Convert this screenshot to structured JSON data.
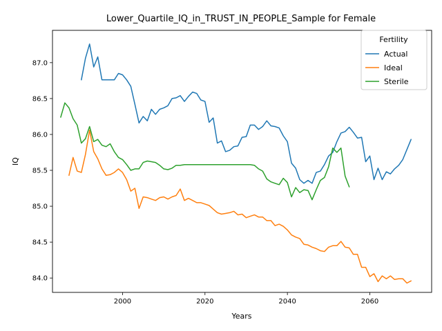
{
  "chart_data": {
    "type": "line",
    "title": "Lower_Quartile_IQ_in_TRUST_IN_PEOPLE_Sample for Female",
    "xlabel": "Years",
    "ylabel": "IQ",
    "xlim": [
      1983,
      2075
    ],
    "ylim": [
      83.8,
      87.45
    ],
    "xticks": [
      2000,
      2020,
      2040,
      2060
    ],
    "yticks": [
      84.0,
      84.5,
      85.0,
      85.5,
      86.0,
      86.5,
      87.0
    ],
    "ytick_labels": [
      "84.0",
      "84.5",
      "85.0",
      "85.5",
      "86.0",
      "86.5",
      "87.0"
    ],
    "grid": false,
    "legend": {
      "title": "Fertility",
      "position": "top-right"
    },
    "series": [
      {
        "name": "Actual",
        "color": "#1f77b4",
        "x": [
          1990,
          1991,
          1992,
          1993,
          1994,
          1995,
          1996,
          1997,
          1998,
          1999,
          2000,
          2001,
          2002,
          2003,
          2004,
          2005,
          2006,
          2007,
          2008,
          2009,
          2010,
          2011,
          2012,
          2013,
          2014,
          2015,
          2016,
          2017,
          2018,
          2019,
          2020,
          2021,
          2022,
          2023,
          2024,
          2025,
          2026,
          2027,
          2028,
          2029,
          2030,
          2031,
          2032,
          2033,
          2034,
          2035,
          2036,
          2037,
          2038,
          2039,
          2040,
          2041,
          2042,
          2043,
          2044,
          2045,
          2046,
          2047,
          2048,
          2049,
          2050,
          2051,
          2052,
          2053,
          2054,
          2055,
          2056,
          2057,
          2058,
          2059,
          2060,
          2061,
          2062,
          2063,
          2064,
          2065,
          2066,
          2067,
          2068,
          2069,
          2070
        ],
        "values": [
          86.76,
          87.06,
          87.26,
          86.94,
          87.08,
          86.76,
          86.76,
          86.76,
          86.76,
          86.85,
          86.83,
          86.76,
          86.67,
          86.42,
          86.16,
          86.25,
          86.19,
          86.35,
          86.28,
          86.35,
          86.37,
          86.4,
          86.5,
          86.51,
          86.54,
          86.46,
          86.53,
          86.59,
          86.57,
          86.48,
          86.46,
          86.17,
          86.23,
          85.88,
          85.91,
          85.76,
          85.78,
          85.83,
          85.84,
          85.96,
          85.97,
          86.13,
          86.13,
          86.07,
          86.11,
          86.19,
          86.12,
          86.11,
          86.09,
          85.98,
          85.9,
          85.6,
          85.53,
          85.37,
          85.32,
          85.36,
          85.32,
          85.47,
          85.49,
          85.58,
          85.7,
          85.75,
          85.9,
          86.02,
          86.04,
          86.1,
          86.03,
          85.95,
          85.96,
          85.62,
          85.7,
          85.37,
          85.53,
          85.37,
          85.48,
          85.45,
          85.52,
          85.57,
          85.65,
          85.79,
          85.93
        ]
      },
      {
        "name": "Ideal",
        "color": "#ff7f0e",
        "x": [
          1987,
          1988,
          1989,
          1990,
          1991,
          1992,
          1993,
          1994,
          1995,
          1996,
          1997,
          1998,
          1999,
          2000,
          2001,
          2002,
          2003,
          2004,
          2005,
          2006,
          2007,
          2008,
          2009,
          2010,
          2011,
          2012,
          2013,
          2014,
          2015,
          2016,
          2017,
          2018,
          2019,
          2020,
          2021,
          2022,
          2023,
          2024,
          2025,
          2026,
          2027,
          2028,
          2029,
          2030,
          2031,
          2032,
          2033,
          2034,
          2035,
          2036,
          2037,
          2038,
          2039,
          2040,
          2041,
          2042,
          2043,
          2044,
          2045,
          2046,
          2047,
          2048,
          2049,
          2050,
          2051,
          2052,
          2053,
          2054,
          2055,
          2056,
          2057,
          2058,
          2059,
          2060,
          2061,
          2062,
          2063,
          2064,
          2065,
          2066,
          2067,
          2068,
          2069,
          2070
        ],
        "values": [
          85.43,
          85.68,
          85.49,
          85.47,
          85.72,
          86.06,
          85.76,
          85.66,
          85.52,
          85.43,
          85.44,
          85.47,
          85.52,
          85.47,
          85.37,
          85.21,
          85.25,
          84.97,
          85.13,
          85.12,
          85.1,
          85.08,
          85.12,
          85.13,
          85.1,
          85.13,
          85.15,
          85.24,
          85.08,
          85.11,
          85.08,
          85.05,
          85.05,
          85.03,
          85.01,
          84.96,
          84.91,
          84.89,
          84.9,
          84.91,
          84.93,
          84.88,
          84.89,
          84.84,
          84.86,
          84.88,
          84.85,
          84.85,
          84.8,
          84.8,
          84.73,
          84.75,
          84.72,
          84.67,
          84.6,
          84.57,
          84.55,
          84.47,
          84.46,
          84.43,
          84.41,
          84.38,
          84.37,
          84.43,
          84.45,
          84.45,
          84.51,
          84.43,
          84.42,
          84.33,
          84.33,
          84.15,
          84.15,
          84.02,
          84.06,
          83.95,
          84.03,
          83.99,
          84.03,
          83.98,
          83.99,
          83.99,
          83.93,
          83.96
        ]
      },
      {
        "name": "Sterile",
        "color": "#2ca02c",
        "x": [
          1985,
          1986,
          1987,
          1988,
          1989,
          1990,
          1991,
          1992,
          1993,
          1994,
          1995,
          1996,
          1997,
          1998,
          1999,
          2000,
          2001,
          2002,
          2003,
          2004,
          2005,
          2006,
          2007,
          2008,
          2009,
          2010,
          2011,
          2012,
          2013,
          2014,
          2015,
          2016,
          2017,
          2018,
          2019,
          2020,
          2021,
          2022,
          2023,
          2024,
          2025,
          2026,
          2027,
          2028,
          2029,
          2030,
          2031,
          2032,
          2033,
          2034,
          2035,
          2036,
          2037,
          2038,
          2039,
          2040,
          2041,
          2042,
          2043,
          2044,
          2045,
          2046,
          2047,
          2048,
          2049,
          2050,
          2051,
          2052,
          2053,
          2054,
          2055
        ],
        "values": [
          86.24,
          86.44,
          86.37,
          86.22,
          86.13,
          85.88,
          85.94,
          86.11,
          85.9,
          85.93,
          85.85,
          85.83,
          85.87,
          85.76,
          85.68,
          85.65,
          85.58,
          85.5,
          85.52,
          85.52,
          85.61,
          85.63,
          85.62,
          85.61,
          85.57,
          85.52,
          85.51,
          85.53,
          85.57,
          85.57,
          85.58,
          85.58,
          85.58,
          85.58,
          85.58,
          85.58,
          85.58,
          85.58,
          85.58,
          85.58,
          85.58,
          85.58,
          85.58,
          85.58,
          85.58,
          85.58,
          85.58,
          85.57,
          85.52,
          85.49,
          85.38,
          85.34,
          85.32,
          85.3,
          85.39,
          85.33,
          85.13,
          85.26,
          85.19,
          85.23,
          85.22,
          85.09,
          85.23,
          85.36,
          85.4,
          85.55,
          85.81,
          85.75,
          85.81,
          85.42,
          85.27
        ]
      }
    ]
  }
}
